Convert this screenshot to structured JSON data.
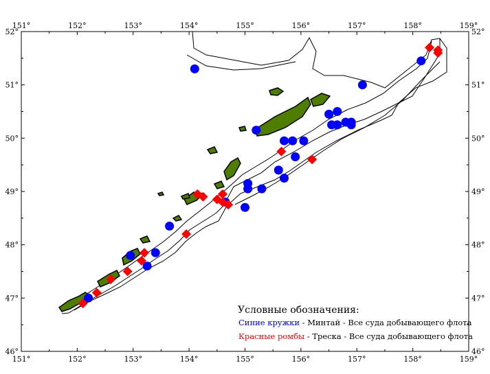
{
  "chart_data": {
    "type": "scatter",
    "title": "",
    "xlabel": "",
    "ylabel": "",
    "xlim": [
      151,
      159
    ],
    "ylim": [
      46,
      52
    ],
    "x_ticks": [
      "151°",
      "152°",
      "153°",
      "154°",
      "155°",
      "156°",
      "157°",
      "158°",
      "159°"
    ],
    "y_ticks": [
      "46°",
      "47°",
      "48°",
      "49°",
      "50°",
      "51°",
      "52°"
    ],
    "colors": {
      "pollock": "#0000ff",
      "cod": "#ff0000",
      "land": "#4f7d00",
      "outline": "#000000"
    },
    "series": [
      {
        "name": "pollock",
        "marker": "circle",
        "points": [
          [
            154.1,
            51.3
          ],
          [
            157.1,
            51.0
          ],
          [
            158.15,
            51.45
          ],
          [
            155.2,
            50.15
          ],
          [
            156.5,
            50.45
          ],
          [
            156.65,
            50.5
          ],
          [
            156.55,
            50.25
          ],
          [
            156.65,
            50.25
          ],
          [
            156.8,
            50.3
          ],
          [
            156.9,
            50.25
          ],
          [
            156.9,
            50.3
          ],
          [
            155.7,
            49.95
          ],
          [
            155.85,
            49.95
          ],
          [
            156.05,
            49.95
          ],
          [
            155.9,
            49.65
          ],
          [
            155.6,
            49.4
          ],
          [
            155.7,
            49.25
          ],
          [
            155.05,
            49.15
          ],
          [
            155.05,
            49.05
          ],
          [
            155.3,
            49.05
          ],
          [
            155.0,
            48.7
          ],
          [
            154.65,
            48.8
          ],
          [
            153.65,
            48.35
          ],
          [
            153.4,
            47.85
          ],
          [
            153.25,
            47.6
          ],
          [
            152.95,
            47.8
          ],
          [
            152.2,
            47.0
          ]
        ]
      },
      {
        "name": "cod",
        "marker": "diamond",
        "points": [
          [
            158.3,
            51.7
          ],
          [
            158.45,
            51.65
          ],
          [
            158.45,
            51.6
          ],
          [
            155.65,
            49.75
          ],
          [
            156.2,
            49.6
          ],
          [
            154.15,
            48.95
          ],
          [
            154.25,
            48.9
          ],
          [
            154.5,
            48.85
          ],
          [
            154.6,
            48.95
          ],
          [
            154.6,
            48.8
          ],
          [
            154.7,
            48.75
          ],
          [
            153.95,
            48.2
          ],
          [
            153.2,
            47.85
          ],
          [
            153.15,
            47.7
          ],
          [
            152.9,
            47.5
          ],
          [
            152.6,
            47.35
          ],
          [
            152.35,
            47.1
          ],
          [
            152.1,
            46.9
          ]
        ]
      }
    ],
    "legend": {
      "title": "Условные обозначения:",
      "entries": [
        {
          "key": "Синие кружки",
          "color": "#0000ff",
          "text": " - Минтай - Все суда добывающего флота"
        },
        {
          "key": "Красные ромбы",
          "color": "#ff0000",
          "text": " - Треска - Все суда добывающего флота"
        }
      ]
    }
  }
}
